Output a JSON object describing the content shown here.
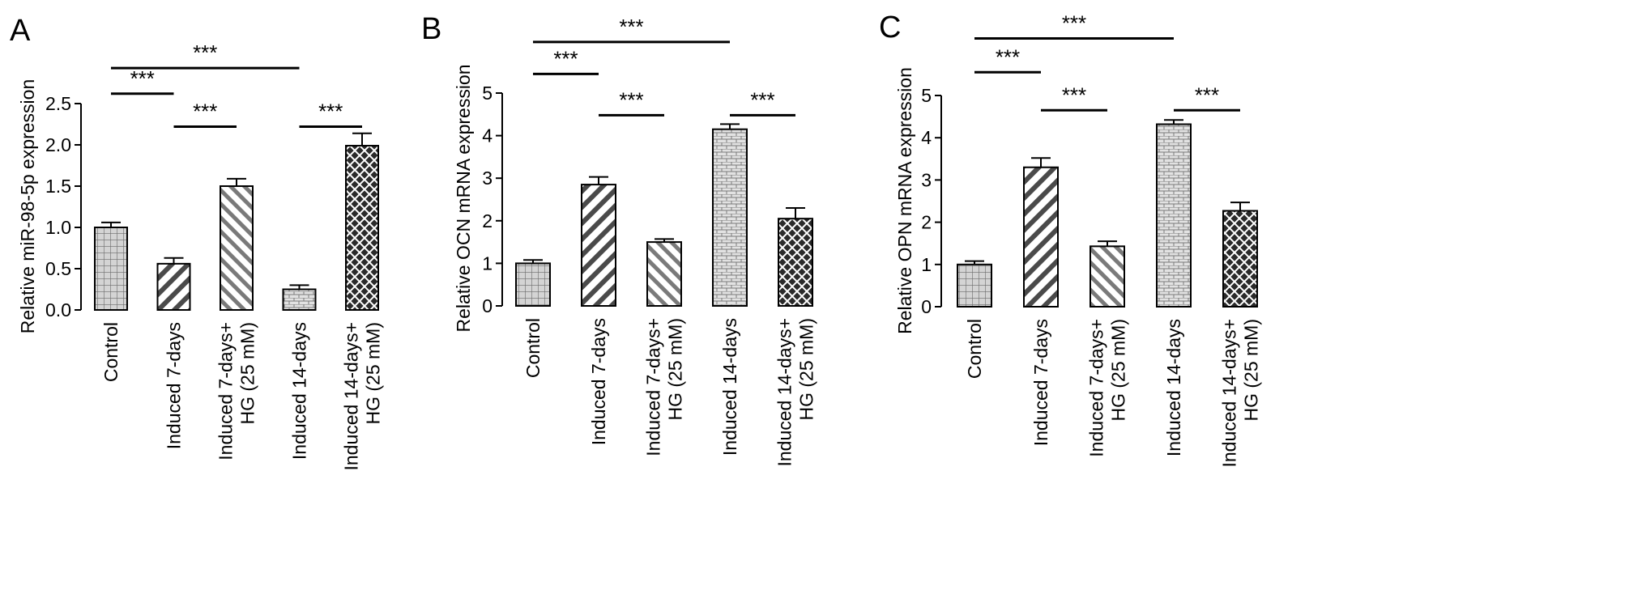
{
  "chart_data": [
    {
      "type": "bar",
      "panel": "A",
      "ylabel": "Relative miR-98-5p expression",
      "categories": [
        "Control",
        "Induced 7-days",
        "Induced 7-days+ HG (25 mM)",
        "Induced 14-days",
        "Induced 14-days+ HG (25 mM)"
      ],
      "category_lines": [
        [
          "Control"
        ],
        [
          "Induced 7-days"
        ],
        [
          "Induced 7-days+",
          "HG (25 mM)"
        ],
        [
          "Induced 14-days"
        ],
        [
          "Induced 14-days+",
          "HG (25 mM)"
        ]
      ],
      "values": [
        1.0,
        0.56,
        1.5,
        0.25,
        1.99
      ],
      "errors": [
        0.06,
        0.07,
        0.09,
        0.05,
        0.15
      ],
      "patterns": [
        "grid",
        "diag-right",
        "diag-left",
        "brick",
        "crosshatch"
      ],
      "ylim": [
        0,
        2.5
      ],
      "yticks": [
        "0.0",
        "0.5",
        "1.0",
        "1.5",
        "2.0",
        "2.5"
      ],
      "significance": [
        {
          "from": 0,
          "to": 3,
          "label": "***",
          "y": 2.93
        },
        {
          "from": 0,
          "to": 1,
          "label": "***",
          "y": 2.62
        },
        {
          "from": 1,
          "to": 2,
          "label": "***",
          "y": 2.22
        },
        {
          "from": 3,
          "to": 4,
          "label": "***",
          "y": 2.22
        }
      ]
    },
    {
      "type": "bar",
      "panel": "B",
      "ylabel": "Relative OCN mRNA expression",
      "categories": [
        "Control",
        "Induced 7-days",
        "Induced 7-days+ HG (25 mM)",
        "Induced 14-days",
        "Induced 14-days+ HG (25 mM)"
      ],
      "category_lines": [
        [
          "Control"
        ],
        [
          "Induced 7-days"
        ],
        [
          "Induced 7-days+",
          "HG (25 mM)"
        ],
        [
          "Induced 14-days"
        ],
        [
          "Induced 14-days+",
          "HG (25 mM)"
        ]
      ],
      "values": [
        1.0,
        2.85,
        1.5,
        4.15,
        2.05
      ],
      "errors": [
        0.08,
        0.18,
        0.07,
        0.12,
        0.25
      ],
      "patterns": [
        "grid",
        "diag-right",
        "diag-left",
        "brick",
        "crosshatch"
      ],
      "ylim": [
        0,
        5
      ],
      "yticks": [
        "0",
        "1",
        "2",
        "3",
        "4",
        "5"
      ],
      "significance": [
        {
          "from": 0,
          "to": 3,
          "label": "***",
          "y": 6.2
        },
        {
          "from": 0,
          "to": 1,
          "label": "***",
          "y": 5.45
        },
        {
          "from": 1,
          "to": 2,
          "label": "***",
          "y": 4.48
        },
        {
          "from": 3,
          "to": 4,
          "label": "***",
          "y": 4.48
        }
      ]
    },
    {
      "type": "bar",
      "panel": "C",
      "ylabel": "Relative OPN mRNA expression",
      "categories": [
        "Control",
        "Induced 7-days",
        "Induced 7-days+ HG (25 mM)",
        "Induced 14-days",
        "Induced 14-days+ HG (25 mM)"
      ],
      "category_lines": [
        [
          "Control"
        ],
        [
          "Induced 7-days"
        ],
        [
          "Induced 7-days+",
          "HG (25 mM)"
        ],
        [
          "Induced 14-days"
        ],
        [
          "Induced 14-days+",
          "HG (25 mM)"
        ]
      ],
      "values": [
        1.0,
        3.3,
        1.43,
        4.32,
        2.27
      ],
      "errors": [
        0.08,
        0.22,
        0.12,
        0.1,
        0.2
      ],
      "patterns": [
        "grid",
        "diag-right",
        "diag-left",
        "brick",
        "crosshatch"
      ],
      "ylim": [
        0,
        5
      ],
      "yticks": [
        "0",
        "1",
        "2",
        "3",
        "4",
        "5"
      ],
      "significance": [
        {
          "from": 0,
          "to": 3,
          "label": "***",
          "y": 6.35
        },
        {
          "from": 0,
          "to": 1,
          "label": "***",
          "y": 5.55
        },
        {
          "from": 1,
          "to": 2,
          "label": "***",
          "y": 4.65
        },
        {
          "from": 3,
          "to": 4,
          "label": "***",
          "y": 4.65
        }
      ]
    }
  ]
}
